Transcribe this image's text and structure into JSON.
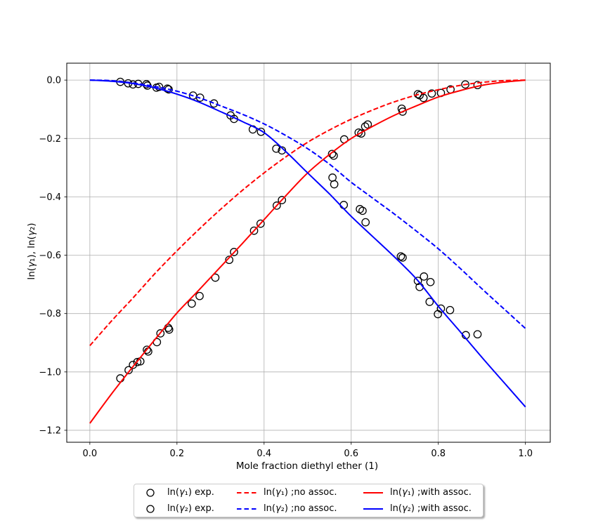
{
  "figure": {
    "background": "#ffffff",
    "grid_color": "#b0b0b0",
    "spine_color": "#000000",
    "marker_color": "#000000",
    "accent_red": "#ff0000",
    "accent_blue": "#0000ff"
  },
  "axes": {
    "xlabel": "Mole fraction diethyl ether (1)",
    "ylabel": "ln(γ₁), ln(γ₂)",
    "x_tick_labels": [
      "0.0",
      "0.2",
      "0.4",
      "0.6",
      "0.8",
      "1.0"
    ],
    "y_tick_labels": [
      "0.0",
      "−0.2",
      "−0.4",
      "−0.6",
      "−0.8",
      "−1.0",
      "−1.2"
    ]
  },
  "legend": {
    "entries": [
      {
        "label": "ln(γ₁) exp.",
        "glyph": "marker",
        "color": "#000000"
      },
      {
        "label": "ln(γ₁) ;no assoc.",
        "glyph": "dashed",
        "color": "#ff0000"
      },
      {
        "label": "ln(γ₁) ;with assoc.",
        "glyph": "solid",
        "color": "#ff0000"
      },
      {
        "label": "ln(γ₂) exp.",
        "glyph": "marker",
        "color": "#000000"
      },
      {
        "label": "ln(γ₂) ;no assoc.",
        "glyph": "dashed",
        "color": "#0000ff"
      },
      {
        "label": "ln(γ₂) ;with assoc.",
        "glyph": "solid",
        "color": "#0000ff"
      }
    ]
  },
  "chart_data": {
    "type": "scatter",
    "title": "",
    "xlabel": "Mole fraction diethyl ether (1)",
    "ylabel": "ln(γ₁), ln(γ₂)",
    "xlim": [
      -0.053,
      1.057
    ],
    "ylim": [
      -1.241,
      0.058
    ],
    "x_ticks": [
      0.0,
      0.2,
      0.4,
      0.6,
      0.8,
      1.0
    ],
    "y_ticks": [
      0.0,
      -0.2,
      -0.4,
      -0.6,
      -0.8,
      -1.0,
      -1.2
    ],
    "grid": true,
    "legend_position": "lower center, below axes, 3 columns",
    "series": [
      {
        "name": "ln(γ₁) exp.",
        "type": "scatter",
        "marker": "open-circle",
        "color": "#000000",
        "points": [
          [
            0.07,
            -1.022
          ],
          [
            0.089,
            -0.994
          ],
          [
            0.099,
            -0.976
          ],
          [
            0.109,
            -0.966
          ],
          [
            0.116,
            -0.964
          ],
          [
            0.131,
            -0.924
          ],
          [
            0.134,
            -0.93
          ],
          [
            0.154,
            -0.898
          ],
          [
            0.162,
            -0.868
          ],
          [
            0.18,
            -0.849
          ],
          [
            0.182,
            -0.855
          ],
          [
            0.234,
            -0.766
          ],
          [
            0.252,
            -0.74
          ],
          [
            0.288,
            -0.677
          ],
          [
            0.32,
            -0.616
          ],
          [
            0.331,
            -0.589
          ],
          [
            0.377,
            -0.516
          ],
          [
            0.392,
            -0.492
          ],
          [
            0.429,
            -0.43
          ],
          [
            0.441,
            -0.411
          ],
          [
            0.556,
            -0.253
          ],
          [
            0.56,
            -0.259
          ],
          [
            0.584,
            -0.203
          ],
          [
            0.617,
            -0.18
          ],
          [
            0.623,
            -0.183
          ],
          [
            0.632,
            -0.159
          ],
          [
            0.638,
            -0.152
          ],
          [
            0.716,
            -0.098
          ],
          [
            0.718,
            -0.108
          ],
          [
            0.753,
            -0.048
          ],
          [
            0.757,
            -0.052
          ],
          [
            0.766,
            -0.061
          ],
          [
            0.785,
            -0.046
          ],
          [
            0.806,
            -0.044
          ],
          [
            0.828,
            -0.032
          ],
          [
            0.862,
            -0.015
          ],
          [
            0.89,
            -0.017
          ]
        ]
      },
      {
        "name": "ln(γ₂) exp.",
        "type": "scatter",
        "marker": "open-circle",
        "color": "#000000",
        "points": [
          [
            0.07,
            -0.006
          ],
          [
            0.088,
            -0.011
          ],
          [
            0.099,
            -0.015
          ],
          [
            0.111,
            -0.013
          ],
          [
            0.13,
            -0.014
          ],
          [
            0.132,
            -0.019
          ],
          [
            0.153,
            -0.026
          ],
          [
            0.159,
            -0.023
          ],
          [
            0.178,
            -0.029
          ],
          [
            0.181,
            -0.032
          ],
          [
            0.237,
            -0.053
          ],
          [
            0.253,
            -0.06
          ],
          [
            0.285,
            -0.08
          ],
          [
            0.323,
            -0.121
          ],
          [
            0.331,
            -0.133
          ],
          [
            0.374,
            -0.169
          ],
          [
            0.393,
            -0.177
          ],
          [
            0.428,
            -0.235
          ],
          [
            0.441,
            -0.241
          ],
          [
            0.557,
            -0.334
          ],
          [
            0.561,
            -0.357
          ],
          [
            0.583,
            -0.428
          ],
          [
            0.62,
            -0.442
          ],
          [
            0.626,
            -0.448
          ],
          [
            0.633,
            -0.487
          ],
          [
            0.714,
            -0.604
          ],
          [
            0.718,
            -0.608
          ],
          [
            0.753,
            -0.688
          ],
          [
            0.757,
            -0.709
          ],
          [
            0.767,
            -0.673
          ],
          [
            0.782,
            -0.692
          ],
          [
            0.78,
            -0.76
          ],
          [
            0.799,
            -0.802
          ],
          [
            0.806,
            -0.783
          ],
          [
            0.827,
            -0.788
          ],
          [
            0.863,
            -0.874
          ],
          [
            0.89,
            -0.871
          ]
        ]
      },
      {
        "name": "ln(γ₁) ;no assoc.",
        "type": "line",
        "linestyle": "dashed",
        "color": "#ff0000",
        "points": [
          [
            0,
            -0.91
          ],
          [
            0.05,
            -0.825
          ],
          [
            0.1,
            -0.745
          ],
          [
            0.15,
            -0.662
          ],
          [
            0.2,
            -0.585
          ],
          [
            0.25,
            -0.512
          ],
          [
            0.3,
            -0.443
          ],
          [
            0.35,
            -0.378
          ],
          [
            0.4,
            -0.318
          ],
          [
            0.45,
            -0.263
          ],
          [
            0.5,
            -0.213
          ],
          [
            0.55,
            -0.171
          ],
          [
            0.6,
            -0.134
          ],
          [
            0.65,
            -0.102
          ],
          [
            0.7,
            -0.074
          ],
          [
            0.75,
            -0.051
          ],
          [
            0.8,
            -0.033
          ],
          [
            0.85,
            -0.018
          ],
          [
            0.9,
            -0.008
          ],
          [
            0.95,
            -0.002
          ],
          [
            1,
            0
          ]
        ]
      },
      {
        "name": "ln(γ₂) ;no assoc.",
        "type": "line",
        "linestyle": "dashed",
        "color": "#0000ff",
        "points": [
          [
            0,
            0
          ],
          [
            0.05,
            -0.002
          ],
          [
            0.1,
            -0.01
          ],
          [
            0.15,
            -0.022
          ],
          [
            0.2,
            -0.038
          ],
          [
            0.25,
            -0.06
          ],
          [
            0.3,
            -0.088
          ],
          [
            0.35,
            -0.117
          ],
          [
            0.4,
            -0.15
          ],
          [
            0.45,
            -0.19
          ],
          [
            0.5,
            -0.235
          ],
          [
            0.55,
            -0.288
          ],
          [
            0.6,
            -0.35
          ],
          [
            0.65,
            -0.405
          ],
          [
            0.7,
            -0.46
          ],
          [
            0.75,
            -0.518
          ],
          [
            0.8,
            -0.578
          ],
          [
            0.85,
            -0.645
          ],
          [
            0.9,
            -0.715
          ],
          [
            0.95,
            -0.783
          ],
          [
            1,
            -0.851
          ]
        ]
      },
      {
        "name": "ln(γ₁) ;with assoc.",
        "type": "line",
        "linestyle": "solid",
        "color": "#ff0000",
        "points": [
          [
            0,
            -1.176
          ],
          [
            0.05,
            -1.075
          ],
          [
            0.1,
            -0.98
          ],
          [
            0.15,
            -0.888
          ],
          [
            0.2,
            -0.798
          ],
          [
            0.25,
            -0.72
          ],
          [
            0.3,
            -0.64
          ],
          [
            0.35,
            -0.56
          ],
          [
            0.4,
            -0.478
          ],
          [
            0.45,
            -0.396
          ],
          [
            0.5,
            -0.318
          ],
          [
            0.55,
            -0.255
          ],
          [
            0.6,
            -0.2
          ],
          [
            0.65,
            -0.158
          ],
          [
            0.7,
            -0.12
          ],
          [
            0.75,
            -0.088
          ],
          [
            0.8,
            -0.058
          ],
          [
            0.85,
            -0.036
          ],
          [
            0.9,
            -0.018
          ],
          [
            0.95,
            -0.007
          ],
          [
            1,
            0
          ]
        ]
      },
      {
        "name": "ln(γ₂) ;with assoc.",
        "type": "line",
        "linestyle": "solid",
        "color": "#0000ff",
        "points": [
          [
            0,
            0
          ],
          [
            0.05,
            -0.004
          ],
          [
            0.1,
            -0.012
          ],
          [
            0.15,
            -0.027
          ],
          [
            0.2,
            -0.048
          ],
          [
            0.25,
            -0.075
          ],
          [
            0.3,
            -0.108
          ],
          [
            0.35,
            -0.142
          ],
          [
            0.4,
            -0.18
          ],
          [
            0.45,
            -0.245
          ],
          [
            0.5,
            -0.318
          ],
          [
            0.55,
            -0.39
          ],
          [
            0.6,
            -0.467
          ],
          [
            0.65,
            -0.537
          ],
          [
            0.7,
            -0.607
          ],
          [
            0.75,
            -0.682
          ],
          [
            0.8,
            -0.775
          ],
          [
            0.85,
            -0.862
          ],
          [
            0.9,
            -0.95
          ],
          [
            0.95,
            -1.035
          ],
          [
            1,
            -1.12
          ]
        ]
      }
    ]
  }
}
